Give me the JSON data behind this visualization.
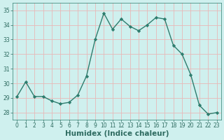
{
  "x": [
    0,
    1,
    2,
    3,
    4,
    5,
    6,
    7,
    8,
    9,
    10,
    11,
    12,
    13,
    14,
    15,
    16,
    17,
    18,
    19,
    20,
    21,
    22,
    23
  ],
  "y": [
    29.1,
    30.1,
    29.1,
    29.1,
    28.8,
    28.6,
    28.7,
    29.2,
    30.5,
    33.0,
    34.8,
    33.7,
    34.4,
    33.9,
    33.6,
    34.0,
    34.5,
    34.4,
    32.6,
    32.0,
    30.6,
    28.5,
    27.9,
    28.0
  ],
  "line_color": "#2e7d6e",
  "marker": "D",
  "marker_size": 2.2,
  "bg_color": "#cff0ee",
  "grid_color": "#e8b8b8",
  "xlabel": "Humidex (Indice chaleur)",
  "ylim": [
    27.5,
    35.5
  ],
  "xlim": [
    -0.5,
    23.5
  ],
  "yticks": [
    28,
    29,
    30,
    31,
    32,
    33,
    34,
    35
  ],
  "xticks": [
    0,
    1,
    2,
    3,
    4,
    5,
    6,
    7,
    8,
    9,
    10,
    11,
    12,
    13,
    14,
    15,
    16,
    17,
    18,
    19,
    20,
    21,
    22,
    23
  ],
  "tick_fontsize": 5.5,
  "xlabel_fontsize": 7.5,
  "line_width": 1.0,
  "text_color": "#2e6b60"
}
